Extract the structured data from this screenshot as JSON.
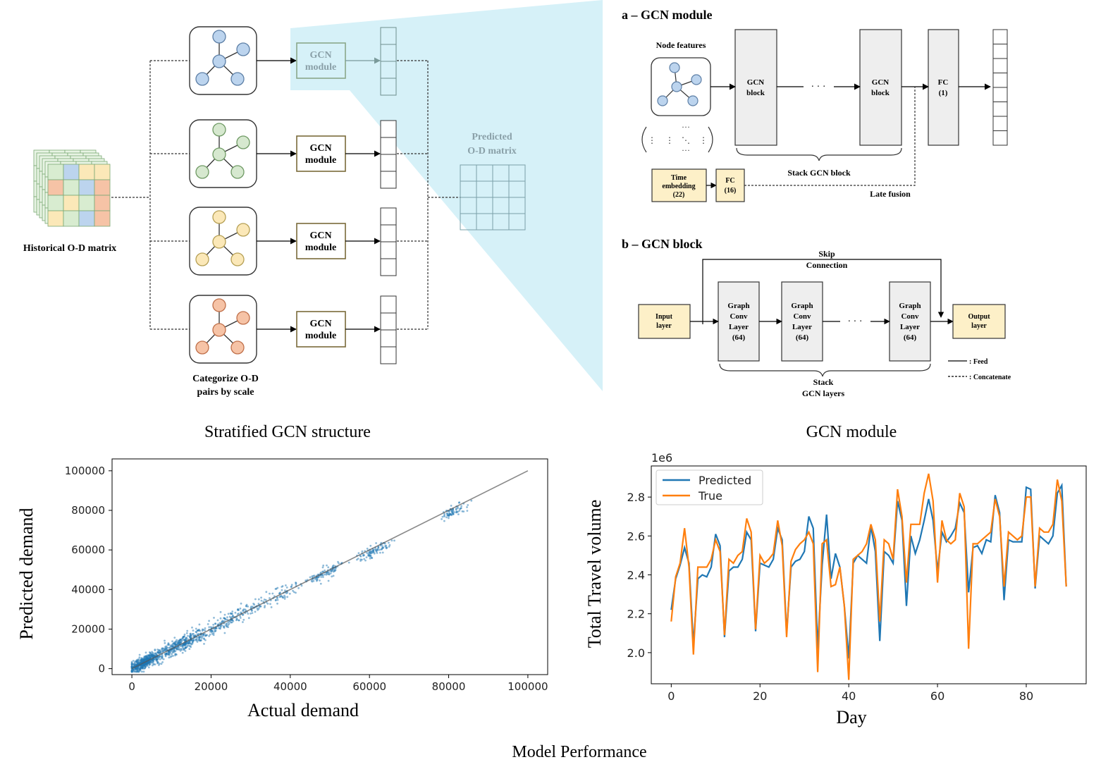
{
  "left_panel": {
    "historical_label": "Historical O-D matrix",
    "gcn_module_label_line1": "GCN",
    "gcn_module_label_line2": "module",
    "categorize_line1": "Categorize O-D",
    "categorize_line2": "pairs by scale",
    "predicted_line1": "Predicted",
    "predicted_line2": "O-D matrix",
    "caption": "Stratified GCN structure",
    "graph_colors": [
      "#bcd4ee",
      "#d6e8cf",
      "#fbe8b8",
      "#f6c3a6"
    ]
  },
  "module_a": {
    "title": "a – GCN module",
    "node_features": "Node features",
    "gcn_block_line1": "GCN",
    "gcn_block_line2": "block",
    "dots": "· · ·",
    "fc1_line1": "FC",
    "fc1_line2": "(1)",
    "stack_label": "Stack GCN block",
    "time_emb_line1": "Time",
    "time_emb_line2": "embedding",
    "time_emb_line3": "(22)",
    "fc16_line1": "FC",
    "fc16_line2": "(16)",
    "late_fusion": "Late fusion"
  },
  "module_b": {
    "title": "b – GCN block",
    "skip_line1": "Skip",
    "skip_line2": "Connection",
    "input_line1": "Input",
    "input_line2": "layer",
    "gc_line1": "Graph",
    "gc_line2": "Conv",
    "gc_line3": "Layer",
    "gc_line4": "(64)",
    "output_line1": "Output",
    "output_line2": "layer",
    "stack_line1": "Stack",
    "stack_line2": "GCN layers",
    "legend_feed": ": Feed",
    "legend_concat": ": Concatenate",
    "caption": "GCN module"
  },
  "bottom_caption": "Model Performance",
  "chart_data": [
    {
      "type": "scatter",
      "xlabel": "Actual demand",
      "ylabel": "Predicted demand",
      "xlim": [
        -5000,
        105000
      ],
      "ylim": [
        -3000,
        106000
      ],
      "xticks": [
        0,
        20000,
        40000,
        60000,
        80000,
        100000
      ],
      "yticks": [
        0,
        20000,
        40000,
        60000,
        80000,
        100000
      ],
      "xtick_labels": [
        "0",
        "20000",
        "40000",
        "60000",
        "80000",
        "100000"
      ],
      "ytick_labels": [
        "0",
        "20000",
        "40000",
        "60000",
        "80000",
        "100000"
      ],
      "reference_line": [
        [
          0,
          0
        ],
        [
          100000,
          100000
        ]
      ],
      "point_color": "#1f77b4",
      "clusters": [
        {
          "x_center": 3000,
          "y_center": 3000,
          "x_spread": 4000,
          "y_spread": 3000,
          "count": 500
        },
        {
          "x_center": 12000,
          "y_center": 12000,
          "x_spread": 8000,
          "y_spread": 4000,
          "count": 400
        },
        {
          "x_center": 25000,
          "y_center": 25000,
          "x_spread": 8000,
          "y_spread": 4000,
          "count": 160
        },
        {
          "x_center": 38000,
          "y_center": 38000,
          "x_spread": 6000,
          "y_spread": 4000,
          "count": 70
        },
        {
          "x_center": 49000,
          "y_center": 48500,
          "x_spread": 4000,
          "y_spread": 3000,
          "count": 90
        },
        {
          "x_center": 61000,
          "y_center": 59500,
          "x_spread": 4000,
          "y_spread": 3000,
          "count": 90
        },
        {
          "x_center": 81000,
          "y_center": 79500,
          "x_spread": 4000,
          "y_spread": 3000,
          "count": 70
        }
      ]
    },
    {
      "type": "line",
      "xlabel": "Day",
      "ylabel": "Total Travel volume",
      "scale_label": "1e6",
      "xlim": [
        -4.5,
        93.5
      ],
      "ylim": [
        1.84,
        2.96
      ],
      "xticks": [
        0,
        20,
        40,
        60,
        80
      ],
      "xtick_labels": [
        "0",
        "20",
        "40",
        "60",
        "80"
      ],
      "yticks": [
        2.0,
        2.2,
        2.4,
        2.6,
        2.8
      ],
      "ytick_labels": [
        "2.0",
        "2.2",
        "2.4",
        "2.6",
        "2.8"
      ],
      "legend_position": "upper-left",
      "series": [
        {
          "name": "Predicted",
          "color": "#1f77b4",
          "values": [
            2.22,
            2.38,
            2.45,
            2.54,
            2.46,
            2.04,
            2.38,
            2.4,
            2.39,
            2.44,
            2.61,
            2.55,
            2.08,
            2.42,
            2.44,
            2.44,
            2.48,
            2.62,
            2.58,
            2.11,
            2.46,
            2.45,
            2.44,
            2.48,
            2.64,
            2.58,
            2.1,
            2.44,
            2.47,
            2.48,
            2.52,
            2.7,
            2.64,
            2.02,
            2.45,
            2.71,
            2.38,
            2.51,
            2.44,
            2.24,
            1.97,
            2.46,
            2.5,
            2.48,
            2.46,
            2.65,
            2.52,
            2.06,
            2.52,
            2.5,
            2.46,
            2.78,
            2.68,
            2.24,
            2.6,
            2.51,
            2.58,
            2.68,
            2.79,
            2.68,
            2.42,
            2.62,
            2.57,
            2.6,
            2.64,
            2.77,
            2.72,
            2.31,
            2.54,
            2.55,
            2.51,
            2.58,
            2.57,
            2.81,
            2.72,
            2.27,
            2.58,
            2.57,
            2.57,
            2.57,
            2.85,
            2.84,
            2.33,
            2.6,
            2.58,
            2.56,
            2.6,
            2.82,
            2.86,
            2.34
          ]
        },
        {
          "name": "True",
          "color": "#ff7f0e",
          "values": [
            2.16,
            2.39,
            2.46,
            2.64,
            2.44,
            1.99,
            2.44,
            2.44,
            2.44,
            2.48,
            2.58,
            2.52,
            2.09,
            2.48,
            2.46,
            2.5,
            2.52,
            2.69,
            2.62,
            2.12,
            2.5,
            2.46,
            2.48,
            2.51,
            2.68,
            2.55,
            2.08,
            2.47,
            2.53,
            2.56,
            2.58,
            2.62,
            2.56,
            1.9,
            2.56,
            2.58,
            2.34,
            2.35,
            2.44,
            2.24,
            1.86,
            2.48,
            2.5,
            2.52,
            2.56,
            2.66,
            2.58,
            2.16,
            2.58,
            2.56,
            2.48,
            2.84,
            2.7,
            2.36,
            2.66,
            2.66,
            2.66,
            2.82,
            2.92,
            2.78,
            2.36,
            2.68,
            2.58,
            2.56,
            2.58,
            2.82,
            2.75,
            2.02,
            2.56,
            2.56,
            2.58,
            2.6,
            2.62,
            2.79,
            2.7,
            2.34,
            2.62,
            2.6,
            2.58,
            2.6,
            2.8,
            2.8,
            2.34,
            2.64,
            2.62,
            2.62,
            2.66,
            2.89,
            2.78,
            2.34
          ]
        }
      ]
    }
  ]
}
